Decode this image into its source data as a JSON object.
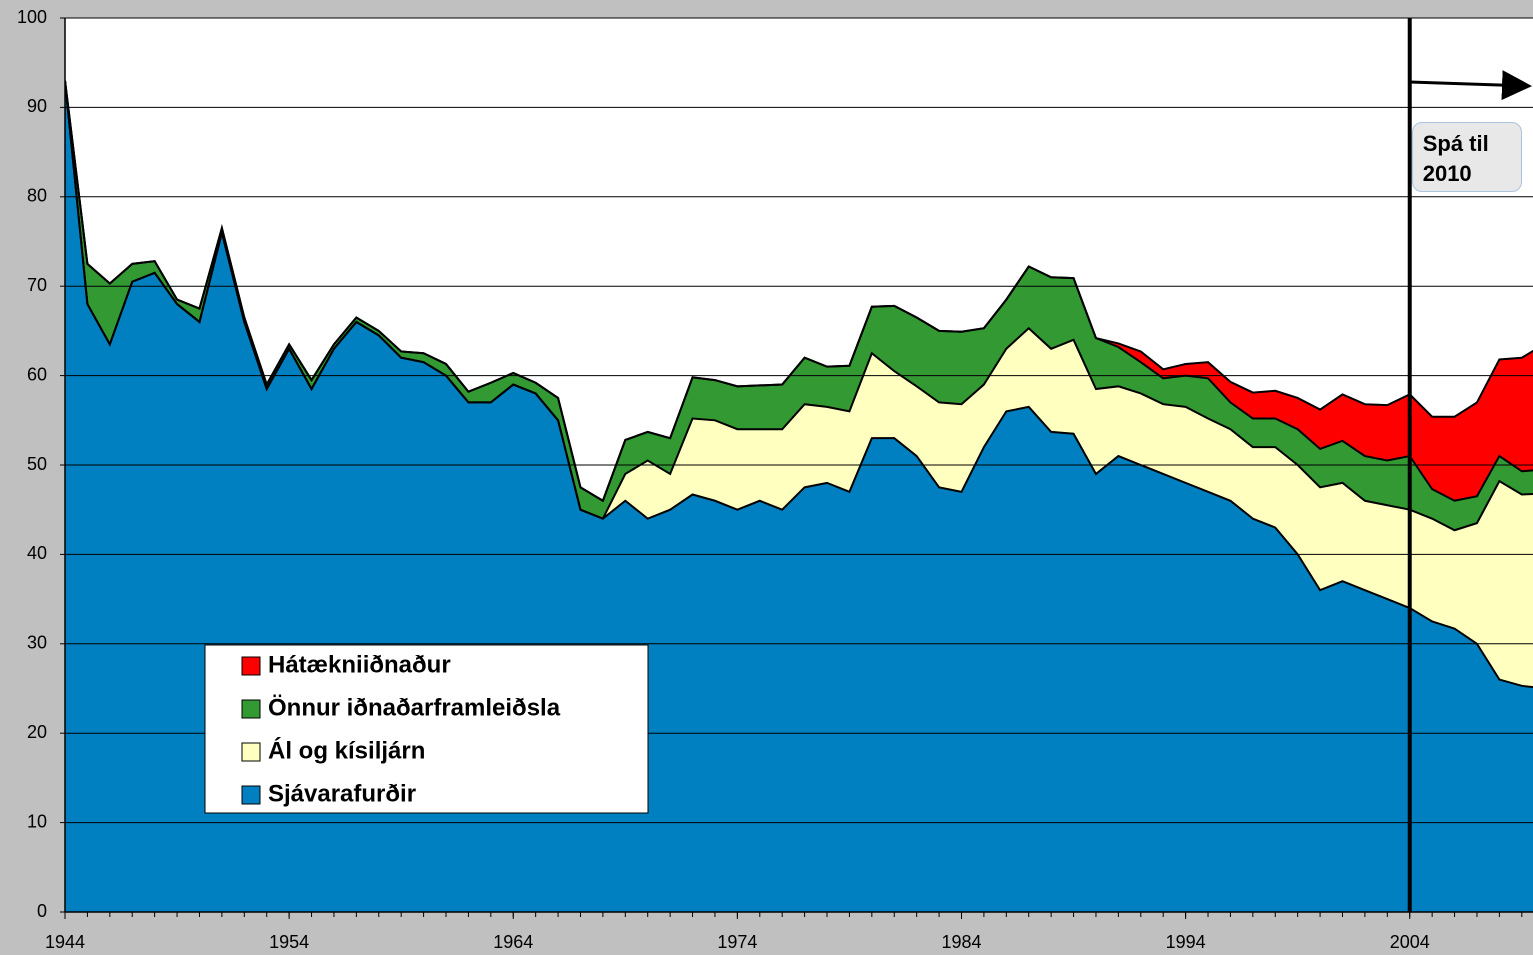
{
  "chart_data": {
    "type": "stacked_area",
    "x": [
      1944,
      1945,
      1946,
      1947,
      1948,
      1949,
      1950,
      1951,
      1952,
      1953,
      1954,
      1955,
      1956,
      1957,
      1958,
      1959,
      1960,
      1961,
      1962,
      1963,
      1964,
      1965,
      1966,
      1967,
      1968,
      1969,
      1970,
      1971,
      1972,
      1973,
      1974,
      1975,
      1976,
      1977,
      1978,
      1979,
      1980,
      1981,
      1982,
      1983,
      1984,
      1985,
      1986,
      1987,
      1988,
      1989,
      1990,
      1991,
      1992,
      1993,
      1994,
      1995,
      1996,
      1997,
      1998,
      1999,
      2000,
      2001,
      2002,
      2003,
      2004,
      2005,
      2006,
      2007,
      2008,
      2009,
      2010
    ],
    "series": [
      {
        "name": "Sjávarafurðir",
        "color": "#0080c0",
        "values": [
          93,
          68,
          63.5,
          70.5,
          71.5,
          68,
          66,
          76,
          66,
          58.5,
          63,
          58.5,
          63,
          66,
          64.5,
          62,
          61.5,
          60,
          57,
          57,
          59,
          58,
          55,
          45,
          44,
          46,
          44,
          45,
          46.7,
          46,
          45,
          46,
          45,
          47.5,
          48,
          47,
          53,
          53,
          51,
          47.5,
          47,
          52,
          56,
          56.5,
          53.7,
          53.5,
          49,
          51,
          50,
          49,
          48,
          47,
          46,
          44,
          43,
          40,
          36,
          37,
          36,
          35,
          34,
          32.5,
          31.7,
          30,
          26,
          25.3,
          25
        ]
      },
      {
        "name": "Ál og kísiljárn",
        "color": "#ffffc0",
        "values": [
          0,
          0,
          0,
          0,
          0,
          0,
          0,
          0,
          0,
          0,
          0,
          0,
          0,
          0,
          0,
          0,
          0,
          0,
          0,
          0,
          0,
          0,
          0,
          0,
          0,
          3,
          6.5,
          4,
          8.5,
          9,
          9,
          8,
          9,
          9.3,
          8.5,
          9,
          9.5,
          7.5,
          7.8,
          9.5,
          9.8,
          7,
          7,
          8.8,
          9.3,
          10.5,
          9.5,
          7.8,
          8,
          7.8,
          8.5,
          8.2,
          8,
          8,
          9,
          10,
          11.5,
          11,
          10,
          10.5,
          11,
          11.5,
          11,
          13.5,
          22.2,
          21.4,
          21.8
        ]
      },
      {
        "name": "Önnur iðnaðarframleiðsla",
        "color": "#339933",
        "values": [
          0,
          4.5,
          6.8,
          2,
          1.3,
          0.5,
          1.5,
          0.5,
          0.5,
          0.5,
          0.5,
          1,
          0.5,
          0.5,
          0.5,
          0.7,
          1,
          1.3,
          1.2,
          2.2,
          1.3,
          1.2,
          2.5,
          2.5,
          2,
          3.8,
          3.2,
          4,
          4.6,
          4.5,
          4.8,
          4.9,
          5,
          5.2,
          4.5,
          5.1,
          5.2,
          7.3,
          7.7,
          8,
          8.1,
          6.3,
          5.5,
          6.9,
          8,
          6.9,
          5.7,
          4.4,
          3.5,
          2.9,
          3.5,
          4.5,
          3,
          3.2,
          3.2,
          4,
          4.3,
          4.7,
          5,
          5,
          6,
          3.3,
          3.3,
          3,
          2.8,
          2.6,
          2.7
        ]
      },
      {
        "name": "Hátækniiðnaður",
        "color": "#ff0000",
        "values": [
          0,
          0,
          0,
          0,
          0,
          0,
          0,
          0,
          0,
          0,
          0,
          0,
          0,
          0,
          0,
          0,
          0,
          0,
          0,
          0,
          0,
          0,
          0,
          0,
          0,
          0,
          0,
          0,
          0,
          0,
          0,
          0,
          0,
          0,
          0,
          0,
          0,
          0,
          0,
          0,
          0,
          0,
          0,
          0,
          0,
          0,
          0,
          0.4,
          1.2,
          1,
          1.3,
          1.8,
          2.3,
          2.9,
          3.1,
          3.5,
          4.4,
          5.2,
          5.8,
          6.2,
          6.9,
          8.1,
          9.4,
          10.5,
          10.8,
          12.7,
          14
        ]
      }
    ],
    "xlim": [
      1944,
      2009.5
    ],
    "xticks": [
      1944,
      1954,
      1964,
      1974,
      1984,
      1994,
      2004
    ],
    "ylim": [
      0,
      100
    ],
    "yticks": [
      0,
      10,
      20,
      30,
      40,
      50,
      60,
      70,
      80,
      90,
      100
    ],
    "grid": true,
    "annotation": {
      "text": "Spá til 2010",
      "x": 2004
    }
  }
}
